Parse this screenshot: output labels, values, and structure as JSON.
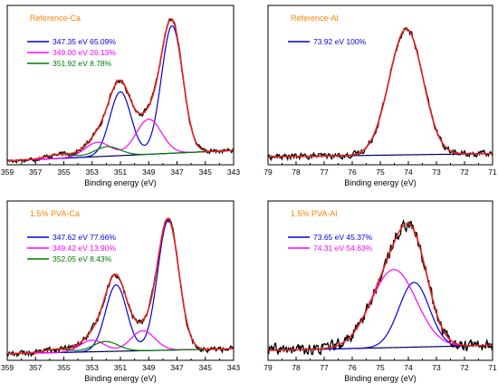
{
  "colors": {
    "title": "#ff8000",
    "experimental": "#000000",
    "envelope": "#e8231a",
    "baseline": "#00005a",
    "blue": "#0000e0",
    "magenta": "#ff00ff",
    "green": "#007a00"
  },
  "chart_data": [
    {
      "type": "line",
      "title": "Reference-Ca",
      "xlabel": "Binding energy (eV)",
      "ylabel": "",
      "xlim": [
        359,
        343
      ],
      "xticks": [
        "359",
        "357",
        "355",
        "353",
        "351",
        "349",
        "347",
        "345",
        "343"
      ],
      "legend": [
        {
          "label": "347.35 eV 65.09%",
          "color": "blue"
        },
        {
          "label": "349.00 eV 26.13%",
          "color": "magenta"
        },
        {
          "label": "351.92 eV 8.78%",
          "color": "green"
        }
      ],
      "series": [
        {
          "color": "blue",
          "peaks": [
            {
              "center": 347.35,
              "height": 0.8,
              "width": 0.75
            },
            {
              "center": 351.0,
              "height": 0.4,
              "width": 0.75
            }
          ]
        },
        {
          "color": "magenta",
          "peaks": [
            {
              "center": 349.0,
              "height": 0.22,
              "width": 0.9
            },
            {
              "center": 352.6,
              "height": 0.09,
              "width": 0.9
            }
          ]
        },
        {
          "color": "green",
          "peaks": [
            {
              "center": 351.92,
              "height": 0.06,
              "width": 0.9
            },
            {
              "center": 355.3,
              "height": 0.025,
              "width": 0.9
            }
          ]
        }
      ],
      "baseline": [
        [
          359,
          0.005
        ],
        [
          343,
          0.07
        ]
      ],
      "noise": 0.012,
      "ylim": [
        -0.02,
        0.98
      ]
    },
    {
      "type": "line",
      "title": "Reference-Al",
      "xlabel": "Binding energy (eV)",
      "ylabel": "",
      "xlim": [
        79,
        71
      ],
      "xticks": [
        "79",
        "78",
        "77",
        "76",
        "75",
        "74",
        "73",
        "72",
        "71"
      ],
      "legend": [
        {
          "label": "73.92 eV 100%",
          "color": "blue"
        }
      ],
      "series": [
        {
          "color": "blue",
          "peaks": [
            {
              "center": 73.92,
              "height": 0.56,
              "width": 0.55
            },
            {
              "center": 74.4,
              "height": 0.3,
              "width": 0.55
            }
          ]
        }
      ],
      "baseline": [
        [
          79,
          0.0
        ],
        [
          71,
          0.02
        ]
      ],
      "noise": 0.015,
      "ylim": [
        -0.05,
        0.95
      ]
    },
    {
      "type": "line",
      "title": "1.5% PVA-Ca",
      "xlabel": "Binding energy (eV)",
      "ylabel": "",
      "xlim": [
        359,
        343
      ],
      "xticks": [
        "359",
        "357",
        "355",
        "353",
        "351",
        "349",
        "347",
        "345",
        "343"
      ],
      "legend": [
        {
          "label": "347.62 eV 77.66%",
          "color": "blue"
        },
        {
          "label": "349.42 eV 13.90%",
          "color": "magenta"
        },
        {
          "label": "352.05 eV 8.43%",
          "color": "green"
        }
      ],
      "series": [
        {
          "color": "blue",
          "peaks": [
            {
              "center": 347.62,
              "height": 0.78,
              "width": 0.75
            },
            {
              "center": 351.3,
              "height": 0.4,
              "width": 0.75
            }
          ]
        },
        {
          "color": "magenta",
          "peaks": [
            {
              "center": 349.42,
              "height": 0.12,
              "width": 0.85
            },
            {
              "center": 353.0,
              "height": 0.07,
              "width": 0.85
            }
          ]
        },
        {
          "color": "green",
          "peaks": [
            {
              "center": 352.05,
              "height": 0.06,
              "width": 0.9
            },
            {
              "center": 355.5,
              "height": 0.02,
              "width": 0.9
            }
          ]
        }
      ],
      "baseline": [
        [
          359,
          0.01
        ],
        [
          343,
          0.04
        ]
      ],
      "noise": 0.014,
      "ylim": [
        -0.03,
        0.93
      ]
    },
    {
      "type": "line",
      "title": "1.5% PVA-Al",
      "xlabel": "Binding energy (eV)",
      "ylabel": "",
      "xlim": [
        79,
        71
      ],
      "xticks": [
        "79",
        "78",
        "77",
        "76",
        "75",
        "74",
        "73",
        "72",
        "71"
      ],
      "legend": [
        {
          "label": "73.65 eV 45.37%",
          "color": "blue"
        },
        {
          "label": "74.31 eV 54.63%",
          "color": "magenta"
        }
      ],
      "series": [
        {
          "color": "blue",
          "peaks": [
            {
              "center": 73.65,
              "height": 0.26,
              "width": 0.5
            },
            {
              "center": 74.05,
              "height": 0.16,
              "width": 0.5
            }
          ]
        },
        {
          "color": "magenta",
          "peaks": [
            {
              "center": 74.31,
              "height": 0.3,
              "width": 0.75
            },
            {
              "center": 74.85,
              "height": 0.2,
              "width": 0.75
            }
          ]
        }
      ],
      "baseline": [
        [
          79,
          0.02
        ],
        [
          71,
          0.05
        ]
      ],
      "noise": 0.03,
      "ylim": [
        -0.04,
        0.92
      ]
    }
  ]
}
